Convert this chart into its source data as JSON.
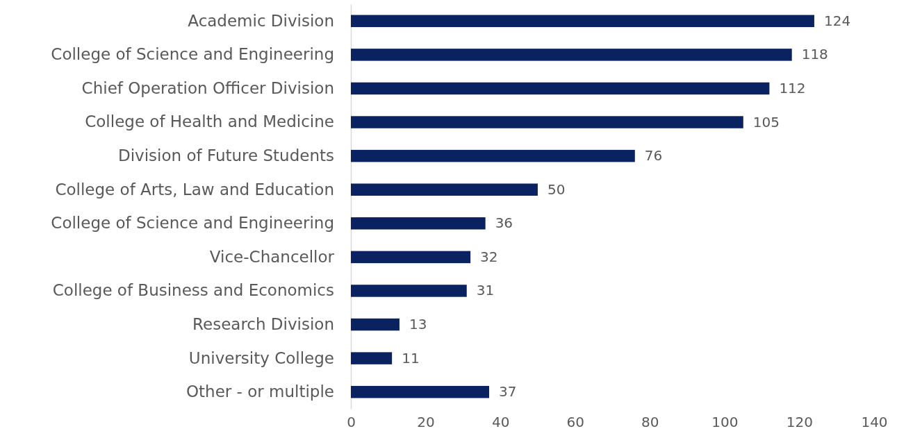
{
  "chart_data": {
    "type": "bar",
    "orientation": "horizontal",
    "categories": [
      "Academic Division",
      "College of Science and Engineering",
      "Chief Operation Officer Division",
      "College of Health and Medicine",
      "Division of Future Students",
      "College of Arts, Law and Education",
      "College of Science and Engineering",
      "Vice-Chancellor",
      "College of Business and Economics",
      "Research Division",
      "University College",
      "Other - or multiple"
    ],
    "values": [
      124,
      118,
      112,
      105,
      76,
      50,
      36,
      32,
      31,
      13,
      11,
      37
    ],
    "color": "#0b2260",
    "xlim": [
      0,
      140
    ],
    "xticks": [
      0,
      20,
      40,
      60,
      80,
      100,
      120,
      140
    ],
    "data_labels": true
  }
}
